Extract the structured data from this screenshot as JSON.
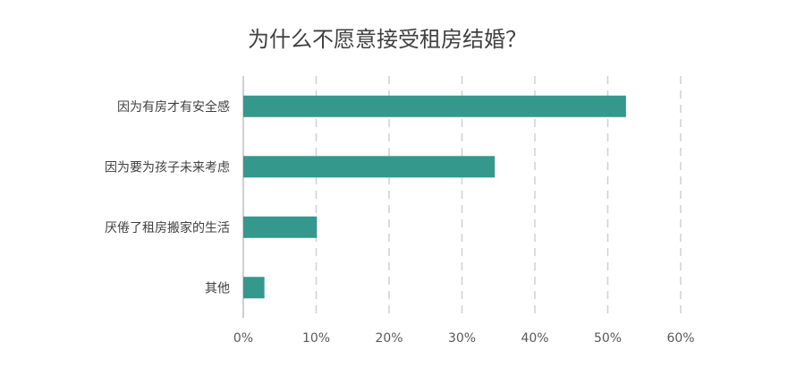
{
  "chart_data": {
    "type": "bar",
    "orientation": "horizontal",
    "title": "为什么不愿意接受租房结婚？",
    "categories": [
      "因为有房才有安全感",
      "因为要为孩子未来考虑",
      "厌倦了租房搬家的生活",
      "其他"
    ],
    "values": [
      52.5,
      34.5,
      10.1,
      2.9
    ],
    "value_unit": "%",
    "xlim": [
      0,
      60
    ],
    "xticks": [
      "0%",
      "10%",
      "20%",
      "30%",
      "40%",
      "50%",
      "60%"
    ],
    "xlabel": "",
    "ylabel": "",
    "grid": "vertical dashed",
    "legend": "none",
    "bar_color": "#35988d"
  }
}
